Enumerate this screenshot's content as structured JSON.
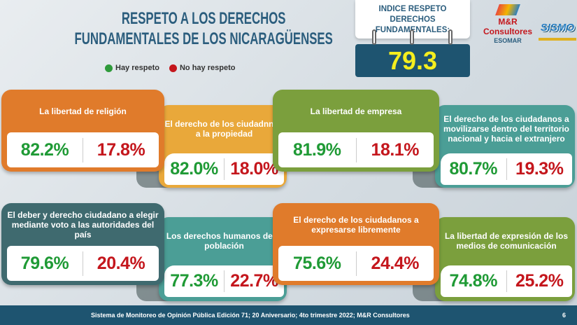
{
  "title": "RESPETO A LOS DERECHOS FUNDAMENTALES DE LOS NICARAGÜENSES",
  "legend": [
    {
      "label": "Hay respeto",
      "color": "#2e9a3a"
    },
    {
      "label": "No hay respeto",
      "color": "#c4161c"
    }
  ],
  "index": {
    "label": "INDICE RESPETO DERECHOS FUNDAMENTALES:",
    "value": "79.3"
  },
  "logos": {
    "mr": "M&R Consultores",
    "esomar": "ESOMAR",
    "sismo": "SISMO"
  },
  "cards": [
    {
      "label": "La libertad de religión",
      "yes": "82.2%",
      "no": "17.8%",
      "color": "#e07b2b"
    },
    {
      "label": "El derecho de los ciudadnnos a la propiedad",
      "yes": "82.0%",
      "no": "18.0%",
      "color": "#e9a83a"
    },
    {
      "label": "La libertad de empresa",
      "yes": "81.9%",
      "no": "18.1%",
      "color": "#7b9f3d"
    },
    {
      "label": "El derecho de los ciudadanos a movilizarse dentro del territorio nacional y hacia el extranjero",
      "yes": "80.7%",
      "no": "19.3%",
      "color": "#4b9e96"
    },
    {
      "label": "El deber y derecho ciudadano a elegir mediante voto a las autoridades del país",
      "yes": "79.6%",
      "no": "20.4%",
      "color": "#3f6a6f"
    },
    {
      "label": "Los derechos humanos de la población",
      "yes": "77.3%",
      "no": "22.7%",
      "color": "#4b9e96"
    },
    {
      "label": "El derecho de los ciudadanos a expresarse libremente",
      "yes": "75.6%",
      "no": "24.4%",
      "color": "#e07b2b"
    },
    {
      "label": "La libertad de expresión de los medios de comunicación",
      "yes": "74.8%",
      "no": "25.2%",
      "color": "#7b9f3d"
    }
  ],
  "footer": {
    "text": "Sistema de Monitoreo de Opinión Pública Edición 71; 20 Aniversario; 4to trimestre 2022; M&R Consultores",
    "page": "6"
  }
}
